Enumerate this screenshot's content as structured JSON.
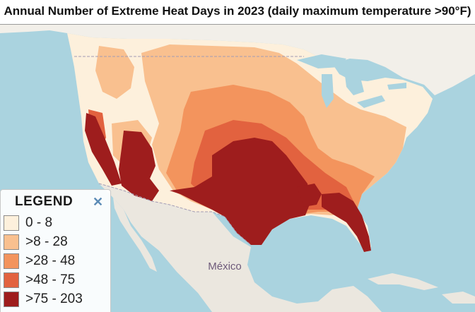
{
  "title": "Annual Number of Extreme Heat Days in 2023 (daily maximum temperature >90°F)",
  "legend": {
    "title": "LEGEND",
    "close_icon": "close-icon",
    "items": [
      {
        "label": "0 - 8",
        "color": "#fdf0dc"
      },
      {
        "label": ">8 - 28",
        "color": "#f9c08f"
      },
      {
        "label": ">28 - 48",
        "color": "#f3945d"
      },
      {
        "label": ">48 - 75",
        "color": "#e2623f"
      },
      {
        "label": ">75 - 203",
        "color": "#9e1d1d"
      }
    ]
  },
  "map_labels": {
    "mexico": "México"
  },
  "colors": {
    "water": "#aad3df",
    "land": "#f2efe9",
    "mexico_land": "#ebe7df"
  }
}
